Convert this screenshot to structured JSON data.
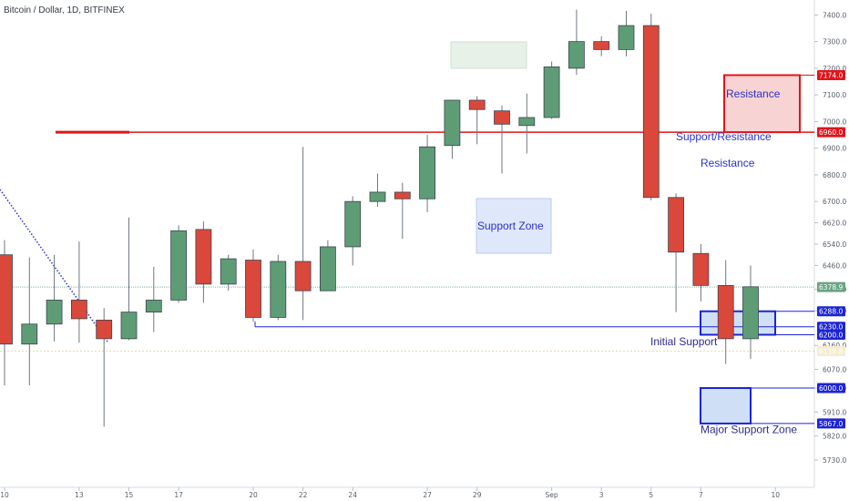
{
  "chart_data": {
    "type": "candlestick",
    "title": "Bitcoin / Dollar, 1D, BITFINEX",
    "y_range": [
      5700,
      7480
    ],
    "y_ticks": [
      7400,
      7300,
      7200,
      7100,
      7000,
      6900,
      6800,
      6700,
      6620,
      6540,
      6460,
      6370,
      6290,
      6160,
      6070,
      6000,
      5910,
      5820,
      5730
    ],
    "x_ticks": [
      {
        "label": "10",
        "day": 0
      },
      {
        "label": "13",
        "day": 3
      },
      {
        "label": "15",
        "day": 5
      },
      {
        "label": "17",
        "day": 7
      },
      {
        "label": "20",
        "day": 10
      },
      {
        "label": "22",
        "day": 12
      },
      {
        "label": "24",
        "day": 14
      },
      {
        "label": "27",
        "day": 17
      },
      {
        "label": "29",
        "day": 19
      },
      {
        "label": "Sep",
        "day": 22
      },
      {
        "label": "3",
        "day": 24
      },
      {
        "label": "5",
        "day": 26
      },
      {
        "label": "7",
        "day": 28
      },
      {
        "label": "10",
        "day": 31
      }
    ],
    "candles": [
      {
        "day": 0,
        "o": 6500,
        "h": 6555,
        "l": 6010,
        "c": 6165
      },
      {
        "day": 1,
        "o": 6165,
        "h": 6490,
        "l": 6010,
        "c": 6240
      },
      {
        "day": 2,
        "o": 6240,
        "h": 6500,
        "l": 6175,
        "c": 6330
      },
      {
        "day": 3,
        "o": 6330,
        "h": 6550,
        "l": 6170,
        "c": 6260
      },
      {
        "day": 4,
        "o": 6255,
        "h": 6300,
        "l": 5855,
        "c": 6185
      },
      {
        "day": 5,
        "o": 6185,
        "h": 6640,
        "l": 6180,
        "c": 6285
      },
      {
        "day": 6,
        "o": 6285,
        "h": 6455,
        "l": 6210,
        "c": 6330
      },
      {
        "day": 7,
        "o": 6330,
        "h": 6610,
        "l": 6320,
        "c": 6590
      },
      {
        "day": 8,
        "o": 6595,
        "h": 6625,
        "l": 6320,
        "c": 6390
      },
      {
        "day": 9,
        "o": 6390,
        "h": 6500,
        "l": 6365,
        "c": 6485
      },
      {
        "day": 10,
        "o": 6480,
        "h": 6520,
        "l": 6250,
        "c": 6265
      },
      {
        "day": 11,
        "o": 6265,
        "h": 6500,
        "l": 6255,
        "c": 6475
      },
      {
        "day": 12,
        "o": 6475,
        "h": 6905,
        "l": 6255,
        "c": 6365
      },
      {
        "day": 13,
        "o": 6365,
        "h": 6555,
        "l": 6365,
        "c": 6530
      },
      {
        "day": 14,
        "o": 6530,
        "h": 6720,
        "l": 6460,
        "c": 6700
      },
      {
        "day": 15,
        "o": 6700,
        "h": 6805,
        "l": 6680,
        "c": 6735
      },
      {
        "day": 16,
        "o": 6735,
        "h": 6770,
        "l": 6560,
        "c": 6710
      },
      {
        "day": 17,
        "o": 6710,
        "h": 6950,
        "l": 6660,
        "c": 6905
      },
      {
        "day": 18,
        "o": 6910,
        "h": 7075,
        "l": 6860,
        "c": 7080
      },
      {
        "day": 19,
        "o": 7080,
        "h": 7095,
        "l": 6915,
        "c": 7045
      },
      {
        "day": 20,
        "o": 7040,
        "h": 7060,
        "l": 6805,
        "c": 6990
      },
      {
        "day": 21,
        "o": 6985,
        "h": 7105,
        "l": 6880,
        "c": 7015
      },
      {
        "day": 22,
        "o": 7015,
        "h": 7225,
        "l": 7010,
        "c": 7205
      },
      {
        "day": 23,
        "o": 7200,
        "h": 7420,
        "l": 7175,
        "c": 7300
      },
      {
        "day": 24,
        "o": 7300,
        "h": 7320,
        "l": 7245,
        "c": 7270
      },
      {
        "day": 25,
        "o": 7270,
        "h": 7415,
        "l": 7245,
        "c": 7360
      },
      {
        "day": 26,
        "o": 7360,
        "h": 7405,
        "l": 6705,
        "c": 6715
      },
      {
        "day": 27,
        "o": 6715,
        "h": 6730,
        "l": 6285,
        "c": 6510
      },
      {
        "day": 28,
        "o": 6505,
        "h": 6540,
        "l": 6325,
        "c": 6385
      },
      {
        "day": 29,
        "o": 6385,
        "h": 6480,
        "l": 6090,
        "c": 6185
      },
      {
        "day": 30,
        "o": 6185,
        "h": 6460,
        "l": 6110,
        "c": 6380
      }
    ],
    "price_labels": [
      {
        "value": 7174.0,
        "text": "7174.0",
        "color": "#e0151b"
      },
      {
        "value": 6960.0,
        "text": "6960.0",
        "color": "#e0151b"
      },
      {
        "value": 6378.9,
        "text": "6378.9",
        "color": "#6aa585"
      },
      {
        "value": 6288.0,
        "text": "6288.0",
        "color": "#1c24d6"
      },
      {
        "value": 6230.0,
        "text": "6230.0",
        "color": "#1c24d6"
      },
      {
        "value": 6200.0,
        "text": "6200.0",
        "color": "#1c24d6"
      },
      {
        "value": 6138.8,
        "text": "6138.8",
        "color": "#f5ecd0",
        "text_color": "#6a6a6a"
      },
      {
        "value": 6000.0,
        "text": "6000.0",
        "color": "#1c24d6"
      },
      {
        "value": 5867.0,
        "text": "5867.0",
        "color": "#1c24d6"
      }
    ],
    "annotations": {
      "resistance_box": "Resistance",
      "support_resistance": "Support/Resistance",
      "resistance": "Resistance",
      "support_zone": "Support Zone",
      "initial_support": "Initial Support",
      "major_support_zone": "Major Support Zone"
    },
    "levels": {
      "support_resistance_line": 6960,
      "resistance_zone": [
        6960,
        7174
      ],
      "initial_support_line": 6230,
      "initial_support_zone": [
        6200,
        6288
      ],
      "major_support_zone": [
        5867,
        6000
      ],
      "last_price_line": 6378.9,
      "prev_close_line": 6138.8
    },
    "colors": {
      "up": "#5e9c76",
      "down": "#d9483b",
      "resistance": "#e0151b",
      "support": "#1c24d6",
      "trendline": "#2b33c9"
    }
  }
}
